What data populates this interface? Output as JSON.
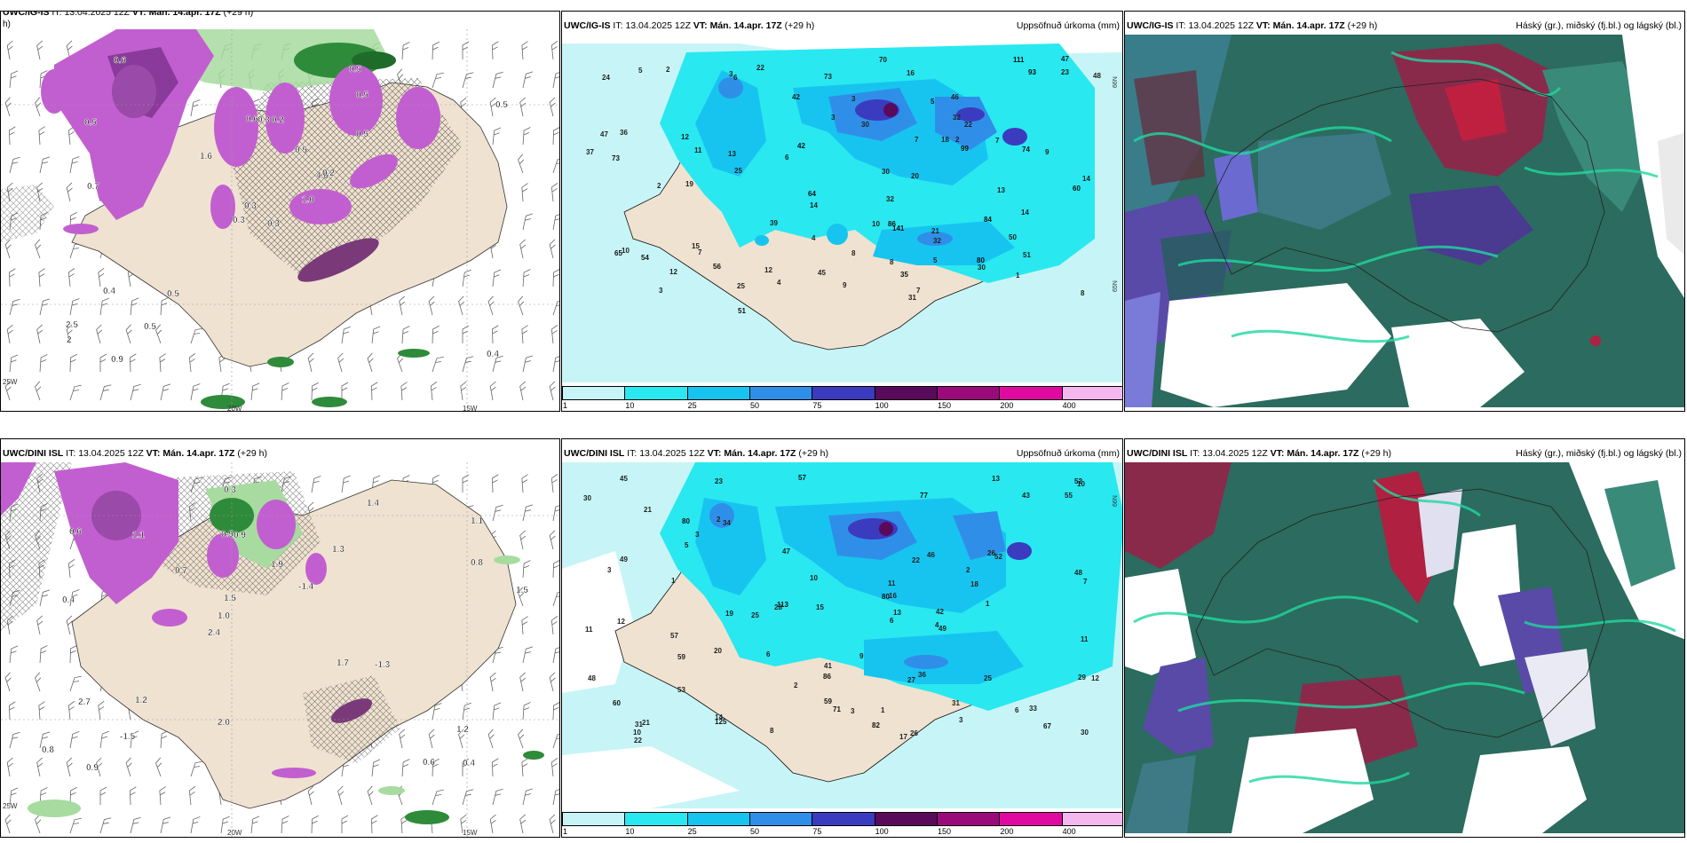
{
  "panels": [
    {
      "id": "tl",
      "model": "UWC/IG-IS",
      "it_label": "IT:",
      "it": "13.04.2025 12Z",
      "vt_label": "VT:",
      "vt": "Mán. 14.apr. 17Z",
      "lead": "(+29 h)",
      "right": "",
      "cut": "h)"
    },
    {
      "id": "tm",
      "model": "UWC/IG-IS",
      "it_label": "IT:",
      "it": "13.04.2025 12Z",
      "vt_label": "VT:",
      "vt": "Mán. 14.apr. 17Z",
      "lead": "(+29 h)",
      "right": "Uppsöfnuð úrkoma (mm)"
    },
    {
      "id": "tr",
      "model": "UWC/IG-IS",
      "it_label": "IT:",
      "it": "13.04.2025 12Z",
      "vt_label": "VT:",
      "vt": "Mán. 14.apr. 17Z",
      "lead": "(+29 h)",
      "right": "Háský (gr.), miðský (fj.bl.) og lágský (bl.)"
    },
    {
      "id": "bl",
      "model": "UWC/DINI ISL",
      "it_label": "IT:",
      "it": "13.04.2025 12Z",
      "vt_label": "VT:",
      "vt": "Mán. 14.apr. 17Z",
      "lead": "(+29 h)",
      "right": ""
    },
    {
      "id": "bm",
      "model": "UWC/DINI ISL",
      "it_label": "IT:",
      "it": "13.04.2025 12Z",
      "vt_label": "VT:",
      "vt": "Mán. 14.apr. 17Z",
      "lead": "(+29 h)",
      "right": "Uppsöfnuð úrkoma (mm)"
    },
    {
      "id": "br",
      "model": "UWC/DINI ISL",
      "it_label": "IT:",
      "it": "13.04.2025 12Z",
      "vt_label": "VT:",
      "vt": "Mán. 14.apr. 17Z",
      "lead": "(+29 h)",
      "right": "Háský (gr.), miðský (fj.bl.) og lágský (bl.)"
    }
  ],
  "axis_labels": {
    "lon1": "20W",
    "lon2": "15W",
    "lon3": "25W",
    "lat1": "66N",
    "lat2": "65N",
    "lat3": "64N"
  },
  "colorbar": {
    "ticks": [
      "1",
      "10",
      "25",
      "50",
      "75",
      "100",
      "150",
      "200",
      "400"
    ],
    "colors": [
      "#c7f5f7",
      "#29e8f0",
      "#17c4f0",
      "#2f8fe8",
      "#3b3bc0",
      "#5a0a5a",
      "#9a0a7a",
      "#e00aa0",
      "#f5b8ee"
    ]
  },
  "precip_top": {
    "labels": [
      {
        "t": "7",
        "c": "a"
      },
      {
        "t": "6",
        "c": "a"
      },
      {
        "t": "7",
        "c": "a"
      },
      {
        "t": "12",
        "c": "a"
      },
      {
        "t": "7",
        "c": "a"
      },
      {
        "t": "35",
        "c": "b"
      },
      {
        "t": "60",
        "c": "b"
      },
      {
        "t": "25",
        "c": "a"
      },
      {
        "t": "14",
        "c": "a"
      },
      {
        "t": "56",
        "c": "b"
      },
      {
        "t": "54",
        "c": "b"
      },
      {
        "t": "47",
        "c": "a"
      },
      {
        "t": "64",
        "c": "b"
      },
      {
        "t": "86",
        "c": "b"
      },
      {
        "t": "99",
        "c": "b"
      },
      {
        "t": "111",
        "c": "b"
      },
      {
        "t": "73",
        "c": "b"
      },
      {
        "t": "93",
        "c": "b"
      },
      {
        "t": "84",
        "c": "b"
      },
      {
        "t": "74",
        "c": "b"
      },
      {
        "t": "80",
        "c": "b"
      },
      {
        "t": "141",
        "c": "b"
      },
      {
        "t": "25",
        "c": "a"
      },
      {
        "t": "30",
        "c": "a"
      },
      {
        "t": "20",
        "c": "a"
      },
      {
        "t": "22",
        "c": "a"
      },
      {
        "t": "19",
        "c": "a"
      },
      {
        "t": "11",
        "c": "a"
      },
      {
        "t": "9",
        "c": "a"
      },
      {
        "t": "42",
        "c": "a"
      },
      {
        "t": "32",
        "c": "a"
      },
      {
        "t": "47",
        "c": "a"
      },
      {
        "t": "46",
        "c": "a"
      },
      {
        "t": "12",
        "c": "a"
      },
      {
        "t": "22",
        "c": "a"
      },
      {
        "t": "45",
        "c": "a"
      },
      {
        "t": "70",
        "c": "a"
      },
      {
        "t": "36",
        "c": "a"
      },
      {
        "t": "14",
        "c": "a"
      },
      {
        "t": "21",
        "c": "a"
      },
      {
        "t": "73",
        "c": "a"
      },
      {
        "t": "30",
        "c": "a"
      },
      {
        "t": "48",
        "c": "a"
      },
      {
        "t": "51",
        "c": "a"
      },
      {
        "t": "16",
        "c": "a"
      },
      {
        "t": "14",
        "c": "a"
      },
      {
        "t": "10",
        "c": "a"
      },
      {
        "t": "4",
        "c": "a"
      },
      {
        "t": "32",
        "c": "a"
      },
      {
        "t": "23",
        "c": "a"
      },
      {
        "t": "39",
        "c": "a"
      },
      {
        "t": "30",
        "c": "a"
      },
      {
        "t": "13",
        "c": "a"
      },
      {
        "t": "32",
        "c": "a"
      },
      {
        "t": "24",
        "c": "a"
      },
      {
        "t": "8",
        "c": "a"
      },
      {
        "t": "1",
        "c": "a"
      },
      {
        "t": "42",
        "c": "b"
      },
      {
        "t": "51",
        "c": "b"
      },
      {
        "t": "65",
        "c": "b"
      },
      {
        "t": "37",
        "c": "a"
      },
      {
        "t": "31",
        "c": "a"
      },
      {
        "t": "2",
        "c": "a"
      },
      {
        "t": "2",
        "c": "a"
      },
      {
        "t": "3",
        "c": "a"
      },
      {
        "t": "3",
        "c": "a"
      },
      {
        "t": "2",
        "c": "a"
      },
      {
        "t": "8",
        "c": "a"
      },
      {
        "t": "5",
        "c": "a"
      },
      {
        "t": "6",
        "c": "a"
      },
      {
        "t": "9",
        "c": "a"
      },
      {
        "t": "7",
        "c": "a"
      },
      {
        "t": "12",
        "c": "a"
      },
      {
        "t": "3",
        "c": "a"
      },
      {
        "t": "4",
        "c": "a"
      },
      {
        "t": "50",
        "c": "a"
      },
      {
        "t": "13",
        "c": "a"
      },
      {
        "t": "15",
        "c": "a"
      },
      {
        "t": "18",
        "c": "a"
      },
      {
        "t": "10",
        "c": "a"
      },
      {
        "t": "3",
        "c": "a"
      },
      {
        "t": "5",
        "c": "a"
      },
      {
        "t": "5",
        "c": "a"
      },
      {
        "t": "8",
        "c": "a"
      }
    ]
  },
  "precip_bottom": {
    "labels": [
      {
        "t": "8",
        "c": "a"
      },
      {
        "t": "17",
        "c": "a"
      },
      {
        "t": "14",
        "c": "a"
      },
      {
        "t": "31",
        "c": "a"
      },
      {
        "t": "23",
        "c": "a"
      },
      {
        "t": "21",
        "c": "a"
      },
      {
        "t": "19",
        "c": "a"
      },
      {
        "t": "67",
        "c": "b"
      },
      {
        "t": "57",
        "c": "b"
      },
      {
        "t": "47",
        "c": "a"
      },
      {
        "t": "43",
        "c": "a"
      },
      {
        "t": "71",
        "c": "b"
      },
      {
        "t": "113",
        "c": "b"
      },
      {
        "t": "86",
        "c": "b"
      },
      {
        "t": "77",
        "c": "b"
      },
      {
        "t": "80",
        "c": "b"
      },
      {
        "t": "49",
        "c": "a"
      },
      {
        "t": "125",
        "c": "b"
      },
      {
        "t": "25",
        "c": "a"
      },
      {
        "t": "30",
        "c": "a"
      },
      {
        "t": "27",
        "c": "a"
      },
      {
        "t": "10",
        "c": "a"
      },
      {
        "t": "11",
        "c": "a"
      },
      {
        "t": "31",
        "c": "a"
      },
      {
        "t": "52",
        "c": "a"
      },
      {
        "t": "57",
        "c": "a"
      },
      {
        "t": "48",
        "c": "a"
      },
      {
        "t": "59",
        "c": "a"
      },
      {
        "t": "45",
        "c": "a"
      },
      {
        "t": "49",
        "c": "a"
      },
      {
        "t": "15",
        "c": "a"
      },
      {
        "t": "26",
        "c": "a"
      },
      {
        "t": "41",
        "c": "a"
      },
      {
        "t": "55",
        "c": "a"
      },
      {
        "t": "53",
        "c": "a"
      },
      {
        "t": "42",
        "c": "a"
      },
      {
        "t": "29",
        "c": "a"
      },
      {
        "t": "60",
        "c": "b"
      },
      {
        "t": "46",
        "c": "a"
      },
      {
        "t": "33",
        "c": "a"
      },
      {
        "t": "16",
        "c": "a"
      },
      {
        "t": "18",
        "c": "a"
      },
      {
        "t": "12",
        "c": "a"
      },
      {
        "t": "21",
        "c": "a"
      },
      {
        "t": "34",
        "c": "a"
      },
      {
        "t": "36",
        "c": "a"
      },
      {
        "t": "11",
        "c": "a"
      },
      {
        "t": "82",
        "c": "b"
      },
      {
        "t": "80",
        "c": "b"
      },
      {
        "t": "59",
        "c": "b"
      },
      {
        "t": "52",
        "c": "b"
      },
      {
        "t": "48",
        "c": "a"
      },
      {
        "t": "30",
        "c": "a"
      },
      {
        "t": "25",
        "c": "a"
      },
      {
        "t": "20",
        "c": "a"
      },
      {
        "t": "26",
        "c": "a"
      },
      {
        "t": "28",
        "c": "a"
      },
      {
        "t": "10",
        "c": "a"
      },
      {
        "t": "2",
        "c": "a"
      },
      {
        "t": "12",
        "c": "a"
      },
      {
        "t": "6",
        "c": "a"
      },
      {
        "t": "3",
        "c": "a"
      },
      {
        "t": "5",
        "c": "a"
      },
      {
        "t": "1",
        "c": "a"
      },
      {
        "t": "3",
        "c": "a"
      },
      {
        "t": "10",
        "c": "a"
      },
      {
        "t": "13",
        "c": "a"
      },
      {
        "t": "7",
        "c": "a"
      },
      {
        "t": "22",
        "c": "a"
      },
      {
        "t": "22",
        "c": "a"
      },
      {
        "t": "2",
        "c": "a"
      },
      {
        "t": "9",
        "c": "a"
      },
      {
        "t": "3",
        "c": "a"
      },
      {
        "t": "1",
        "c": "a"
      },
      {
        "t": "2",
        "c": "a"
      },
      {
        "t": "4",
        "c": "a"
      },
      {
        "t": "6",
        "c": "a"
      },
      {
        "t": "3",
        "c": "a"
      },
      {
        "t": "6",
        "c": "a"
      },
      {
        "t": "11",
        "c": "a"
      },
      {
        "t": "13",
        "c": "a"
      },
      {
        "t": "1",
        "c": "a"
      }
    ]
  },
  "wind_left_top": {
    "temps": [
      "0.3",
      "0.5",
      "0.3",
      "2.5",
      "4.6",
      "0.5",
      "0.5",
      "0.2",
      "0.5",
      "1.0",
      "0.6",
      "0.4",
      "0.7",
      "0.5",
      "0.3",
      "0.5",
      "0.9",
      "0.6",
      "0.5",
      "0.4",
      "1.6",
      "2",
      "0.5",
      "0.3",
      "0.2"
    ]
  },
  "wind_left_bottom": {
    "temps": [
      "0.4",
      "0.4",
      "1.1",
      "2.4",
      "1.3",
      "0.9",
      "0.5",
      "1.9",
      "2.7",
      "0.7",
      "0.8",
      "-1.5",
      "0.9",
      "-1.4",
      "-1.3",
      "0.6",
      "0.3",
      "1.5",
      "1.7",
      "0.8",
      "1.0",
      "2.0",
      "1.5",
      "1.1",
      "1.4",
      "1.2",
      "0.6",
      "1.2"
    ]
  }
}
